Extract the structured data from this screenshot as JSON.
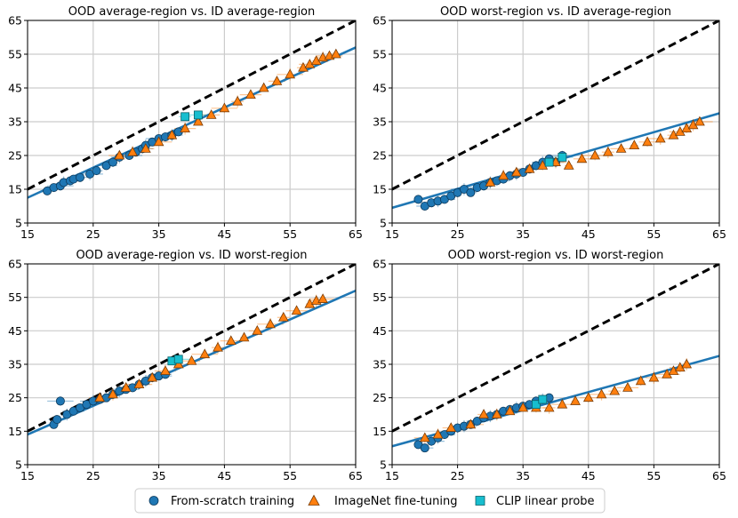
{
  "legend": {
    "items": [
      {
        "label": "From-scratch training",
        "marker": "circle",
        "color": "#1f77b4"
      },
      {
        "label": "ImageNet fine-tuning",
        "marker": "triangle",
        "color": "#ff7f0e"
      },
      {
        "label": "CLIP linear probe",
        "marker": "square",
        "color": "#17becf"
      }
    ],
    "placement": "bottom-center"
  },
  "colors": {
    "from_scratch": "#1f77b4",
    "imagenet": "#ff7f0e",
    "clip": "#17becf",
    "fit_line": "#1f77b4",
    "identity_line": "#000000",
    "grid": "#cccccc"
  },
  "chart_data": [
    {
      "type": "scatter",
      "title": "OOD average-region vs. ID average-region",
      "xlim": [
        15,
        65
      ],
      "ylim": [
        5,
        65
      ],
      "xticks": [
        15,
        25,
        35,
        45,
        55,
        65
      ],
      "yticks": [
        5,
        15,
        25,
        35,
        45,
        55,
        65
      ],
      "grid": true,
      "identity_line": true,
      "fit_line": [
        [
          15,
          12.5
        ],
        [
          65,
          57
        ]
      ],
      "series": [
        {
          "name": "From-scratch training",
          "points": [
            [
              18,
              14.5
            ],
            [
              19,
              15.5
            ],
            [
              20,
              16
            ],
            [
              20.5,
              17
            ],
            [
              21.5,
              17.5
            ],
            [
              22,
              18
            ],
            [
              23,
              18.5
            ],
            [
              24.5,
              19.5
            ],
            [
              25.5,
              20.5
            ],
            [
              27,
              22
            ],
            [
              28,
              23
            ],
            [
              29,
              24.5
            ],
            [
              30.5,
              25
            ],
            [
              31.5,
              26
            ],
            [
              32.5,
              27
            ],
            [
              33,
              28
            ],
            [
              34,
              29
            ],
            [
              35,
              30
            ],
            [
              36,
              30.5
            ],
            [
              37,
              31
            ],
            [
              38,
              32
            ]
          ]
        },
        {
          "name": "ImageNet fine-tuning",
          "points": [
            [
              29,
              25
            ],
            [
              31,
              26
            ],
            [
              33,
              27
            ],
            [
              35,
              29
            ],
            [
              37,
              31
            ],
            [
              39,
              33
            ],
            [
              41,
              35
            ],
            [
              43,
              37
            ],
            [
              45,
              39
            ],
            [
              47,
              41
            ],
            [
              49,
              43
            ],
            [
              51,
              45
            ],
            [
              53,
              47
            ],
            [
              55,
              49
            ],
            [
              57,
              51
            ],
            [
              58,
              52
            ],
            [
              59,
              53
            ],
            [
              60,
              54
            ],
            [
              61,
              54.5
            ],
            [
              62,
              55
            ]
          ]
        },
        {
          "name": "CLIP linear probe",
          "points": [
            [
              39,
              36.5
            ],
            [
              41,
              37
            ]
          ]
        }
      ]
    },
    {
      "type": "scatter",
      "title": "OOD worst-region vs. ID average-region",
      "xlim": [
        15,
        65
      ],
      "ylim": [
        5,
        65
      ],
      "xticks": [
        15,
        25,
        35,
        45,
        55,
        65
      ],
      "yticks": [
        5,
        15,
        25,
        35,
        45,
        55,
        65
      ],
      "grid": true,
      "identity_line": true,
      "fit_line": [
        [
          15,
          9.5
        ],
        [
          65,
          37.5
        ]
      ],
      "series": [
        {
          "name": "From-scratch training",
          "points": [
            [
              19,
              12
            ],
            [
              20,
              10
            ],
            [
              21,
              11
            ],
            [
              22,
              11.5
            ],
            [
              23,
              12
            ],
            [
              24,
              13
            ],
            [
              25,
              14
            ],
            [
              26,
              15
            ],
            [
              27,
              14
            ],
            [
              28,
              15.5
            ],
            [
              29,
              16
            ],
            [
              30,
              17
            ],
            [
              31,
              17.5
            ],
            [
              32,
              18
            ],
            [
              33,
              19
            ],
            [
              34,
              19.5
            ],
            [
              35,
              20
            ],
            [
              36,
              21
            ],
            [
              37,
              22
            ],
            [
              38,
              23
            ],
            [
              39,
              24
            ],
            [
              40,
              23
            ],
            [
              41,
              25
            ]
          ]
        },
        {
          "name": "ImageNet fine-tuning",
          "points": [
            [
              30,
              17
            ],
            [
              32,
              19
            ],
            [
              34,
              20
            ],
            [
              36,
              21
            ],
            [
              38,
              22
            ],
            [
              40,
              23
            ],
            [
              42,
              22
            ],
            [
              44,
              24
            ],
            [
              46,
              25
            ],
            [
              48,
              26
            ],
            [
              50,
              27
            ],
            [
              52,
              28
            ],
            [
              54,
              29
            ],
            [
              56,
              30
            ],
            [
              58,
              31
            ],
            [
              59,
              32
            ],
            [
              60,
              33
            ],
            [
              61,
              34
            ],
            [
              62,
              35
            ]
          ]
        },
        {
          "name": "CLIP linear probe",
          "points": [
            [
              39,
              23
            ],
            [
              41,
              24.5
            ]
          ]
        }
      ]
    },
    {
      "type": "scatter",
      "title": "OOD average-region vs. ID worst-region",
      "xlim": [
        15,
        65
      ],
      "ylim": [
        5,
        65
      ],
      "xticks": [
        15,
        25,
        35,
        45,
        55,
        65
      ],
      "yticks": [
        5,
        15,
        25,
        35,
        45,
        55,
        65
      ],
      "grid": true,
      "identity_line": true,
      "fit_line": [
        [
          15,
          14
        ],
        [
          65,
          57
        ]
      ],
      "series": [
        {
          "name": "From-scratch training",
          "points": [
            [
              19,
              17
            ],
            [
              19.5,
              18.5
            ],
            [
              20,
              24
            ],
            [
              21,
              20
            ],
            [
              22,
              21
            ],
            [
              23,
              22
            ],
            [
              24,
              23
            ],
            [
              25,
              24
            ],
            [
              26,
              24.5
            ],
            [
              27,
              25
            ],
            [
              28,
              26
            ],
            [
              29,
              27
            ],
            [
              30,
              27.5
            ],
            [
              31,
              28
            ],
            [
              32,
              29
            ],
            [
              33,
              30
            ],
            [
              34,
              31
            ],
            [
              35,
              31.5
            ],
            [
              36,
              32
            ]
          ]
        },
        {
          "name": "ImageNet fine-tuning",
          "points": [
            [
              26,
              25
            ],
            [
              28,
              26
            ],
            [
              30,
              28
            ],
            [
              32,
              29
            ],
            [
              34,
              31
            ],
            [
              36,
              33
            ],
            [
              38,
              35
            ],
            [
              40,
              36
            ],
            [
              42,
              38
            ],
            [
              44,
              40
            ],
            [
              46,
              42
            ],
            [
              48,
              43
            ],
            [
              50,
              45
            ],
            [
              52,
              47
            ],
            [
              54,
              49
            ],
            [
              56,
              51
            ],
            [
              58,
              53
            ],
            [
              59,
              54
            ],
            [
              60,
              54.5
            ]
          ]
        },
        {
          "name": "CLIP linear probe",
          "points": [
            [
              37,
              36
            ],
            [
              38,
              36.5
            ]
          ]
        }
      ]
    },
    {
      "type": "scatter",
      "title": "OOD worst-region vs. ID worst-region",
      "xlim": [
        15,
        65
      ],
      "ylim": [
        5,
        65
      ],
      "xticks": [
        15,
        25,
        35,
        45,
        55,
        65
      ],
      "yticks": [
        5,
        15,
        25,
        35,
        45,
        55,
        65
      ],
      "grid": true,
      "identity_line": true,
      "fit_line": [
        [
          15,
          10.5
        ],
        [
          65,
          37.5
        ]
      ],
      "series": [
        {
          "name": "From-scratch training",
          "points": [
            [
              19,
              11
            ],
            [
              20,
              10
            ],
            [
              21,
              12
            ],
            [
              22,
              13
            ],
            [
              23,
              14
            ],
            [
              24,
              15
            ],
            [
              25,
              16
            ],
            [
              26,
              16.5
            ],
            [
              27,
              17
            ],
            [
              28,
              18
            ],
            [
              29,
              19
            ],
            [
              30,
              19.5
            ],
            [
              31,
              20
            ],
            [
              32,
              21
            ],
            [
              33,
              21.5
            ],
            [
              34,
              22
            ],
            [
              35,
              22.5
            ],
            [
              36,
              23
            ],
            [
              37,
              24
            ],
            [
              38,
              24.5
            ],
            [
              39,
              25
            ]
          ]
        },
        {
          "name": "ImageNet fine-tuning",
          "points": [
            [
              20,
              13
            ],
            [
              22,
              14
            ],
            [
              24,
              16
            ],
            [
              27,
              17
            ],
            [
              29,
              20
            ],
            [
              31,
              20
            ],
            [
              33,
              21
            ],
            [
              35,
              22
            ],
            [
              37,
              22
            ],
            [
              39,
              22
            ],
            [
              41,
              23
            ],
            [
              43,
              24
            ],
            [
              45,
              25
            ],
            [
              47,
              26
            ],
            [
              49,
              27
            ],
            [
              51,
              28
            ],
            [
              53,
              30
            ],
            [
              55,
              31
            ],
            [
              57,
              32
            ],
            [
              58,
              33
            ],
            [
              59,
              34
            ],
            [
              60,
              35
            ]
          ]
        },
        {
          "name": "CLIP linear probe",
          "points": [
            [
              37,
              23
            ],
            [
              38,
              24.5
            ]
          ]
        }
      ]
    }
  ]
}
